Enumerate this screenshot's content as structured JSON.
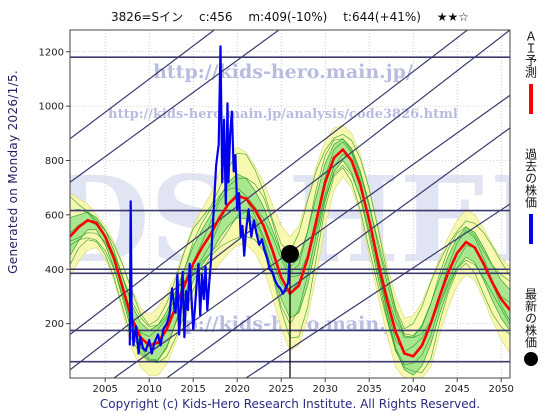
{
  "header": {
    "code_name": "3826=Sイン",
    "current": "c:456",
    "min": "m:409(-10%)",
    "target": "t:644(+41%)",
    "rating": "★★☆"
  },
  "generated": "Generated on Monday 2026/1/5.",
  "footer": "Copyright (c) Kids-Hero Research Institute. All Rights Reserved.",
  "watermark": {
    "url_main": "http://kids-hero.main.jp/",
    "url_analysis": "http://kids-hero.main.jp/analysis/code3826.html",
    "url_bottom": "http://kids-hero.main.jp/",
    "big_text": "KIDS-HERO"
  },
  "legend": {
    "ai_forecast": "ＡＩ予測",
    "past_price": "過去の株価",
    "latest_price": "最新の株価"
  },
  "colors": {
    "ai_forecast": "#ff0000",
    "past_price": "#0000ee",
    "latest_price": "#000000",
    "band_outer": "#f7f7a8",
    "band_inner": "#9be38a",
    "band_line": "#1e9a1e",
    "trend_line": "#3a3a6e",
    "grid": "#aaaaaa"
  },
  "chart_data": {
    "type": "line",
    "xlabel": "",
    "ylabel": "",
    "xlim": [
      2001,
      2051
    ],
    "ylim": [
      0,
      1280
    ],
    "xticks": [
      2005,
      2010,
      2015,
      2020,
      2025,
      2030,
      2035,
      2040,
      2045,
      2050
    ],
    "yticks": [
      200,
      400,
      600,
      800,
      1000,
      1200
    ],
    "grid": true,
    "horizontal_lines": [
      60,
      175,
      385,
      400,
      616,
      1180
    ],
    "diagonal_lines": [
      [
        [
          2001,
          30
        ],
        [
          2051,
          1280
        ]
      ],
      [
        [
          2001,
          160
        ],
        [
          2051,
          1400
        ]
      ],
      [
        [
          2001,
          720
        ],
        [
          2051,
          1900
        ]
      ],
      [
        [
          2001,
          880
        ],
        [
          2051,
          2100
        ]
      ],
      [
        [
          2006,
          0
        ],
        [
          2051,
          1040
        ]
      ],
      [
        [
          2012,
          0
        ],
        [
          2051,
          920
        ]
      ],
      [
        [
          2021,
          0
        ],
        [
          2051,
          640
        ]
      ]
    ],
    "current_marker": {
      "x": 2026.0,
      "y": 456
    },
    "ai_forecast": {
      "name": "ＡＩ予測",
      "x": [
        2001,
        2002,
        2003,
        2004,
        2005,
        2006,
        2007,
        2008,
        2009,
        2010,
        2011,
        2012,
        2013,
        2014,
        2015,
        2016,
        2017,
        2018,
        2019,
        2020,
        2021,
        2022,
        2023,
        2024,
        2025,
        2026,
        2027,
        2028,
        2029,
        2030,
        2031,
        2032,
        2033,
        2034,
        2035,
        2036,
        2037,
        2038,
        2039,
        2040,
        2041,
        2042,
        2043,
        2044,
        2045,
        2046,
        2047,
        2048,
        2049,
        2050,
        2051
      ],
      "values": [
        520,
        555,
        580,
        570,
        520,
        440,
        330,
        220,
        150,
        120,
        130,
        180,
        260,
        340,
        420,
        480,
        530,
        590,
        640,
        670,
        660,
        620,
        560,
        470,
        370,
        310,
        340,
        440,
        580,
        720,
        810,
        840,
        800,
        710,
        580,
        430,
        290,
        170,
        90,
        80,
        120,
        200,
        300,
        390,
        460,
        500,
        480,
        420,
        350,
        290,
        250
      ]
    },
    "band_upper_outer": [
      680,
      660,
      640,
      600,
      560,
      500,
      420,
      330,
      260,
      230,
      260,
      310,
      380,
      470,
      560,
      620,
      680,
      760,
      820,
      850,
      830,
      780,
      720,
      640,
      560,
      520,
      560,
      660,
      780,
      870,
      920,
      930,
      900,
      820,
      700,
      560,
      420,
      300,
      220,
      230,
      280,
      360,
      440,
      520,
      580,
      620,
      600,
      550,
      490,
      440,
      410
    ],
    "band_upper_inner": [
      590,
      600,
      610,
      590,
      545,
      470,
      370,
      270,
      205,
      175,
      195,
      245,
      320,
      400,
      485,
      545,
      600,
      665,
      720,
      750,
      735,
      690,
      630,
      545,
      460,
      410,
      440,
      540,
      670,
      790,
      860,
      880,
      845,
      760,
      640,
      490,
      355,
      235,
      155,
      150,
      195,
      275,
      365,
      450,
      515,
      555,
      535,
      480,
      415,
      360,
      325
    ],
    "band_lower_inner": [
      450,
      505,
      545,
      545,
      490,
      405,
      290,
      170,
      95,
      65,
      65,
      115,
      200,
      280,
      355,
      415,
      460,
      515,
      560,
      590,
      585,
      550,
      490,
      400,
      290,
      220,
      240,
      340,
      490,
      650,
      760,
      800,
      755,
      660,
      520,
      370,
      225,
      105,
      30,
      10,
      45,
      125,
      235,
      330,
      405,
      445,
      425,
      360,
      285,
      220,
      175
    ],
    "band_lower_outer": [
      370,
      430,
      470,
      480,
      440,
      360,
      240,
      110,
      40,
      10,
      10,
      50,
      130,
      210,
      280,
      330,
      380,
      420,
      460,
      490,
      490,
      460,
      400,
      300,
      180,
      100,
      120,
      220,
      380,
      560,
      690,
      740,
      700,
      600,
      450,
      300,
      160,
      40,
      0,
      0,
      0,
      40,
      160,
      260,
      340,
      380,
      360,
      290,
      210,
      140,
      90
    ],
    "past_price": {
      "name": "過去の株価",
      "x": [
        2007.8,
        2007.9,
        2008.0,
        2008.2,
        2008.5,
        2008.8,
        2009.0,
        2009.3,
        2009.6,
        2010.0,
        2010.3,
        2010.6,
        2011.0,
        2011.3,
        2011.6,
        2012.0,
        2012.3,
        2012.6,
        2012.9,
        2013.0,
        2013.2,
        2013.4,
        2013.6,
        2013.8,
        2014.0,
        2014.2,
        2014.4,
        2014.6,
        2014.8,
        2015.0,
        2015.2,
        2015.4,
        2015.6,
        2015.8,
        2016.0,
        2016.2,
        2016.4,
        2016.6,
        2016.8,
        2017.0,
        2017.3,
        2017.6,
        2017.9,
        2018.1,
        2018.3,
        2018.5,
        2018.7,
        2018.9,
        2019.0,
        2019.2,
        2019.4,
        2019.6,
        2019.8,
        2020.0,
        2020.2,
        2020.4,
        2020.6,
        2020.8,
        2021.0,
        2021.3,
        2021.6,
        2021.9,
        2022.2,
        2022.5,
        2022.8,
        2023.1,
        2023.4,
        2023.7,
        2024.0,
        2024.3,
        2024.6,
        2024.9,
        2025.2,
        2025.5,
        2025.8,
        2026.0
      ],
      "values": [
        120,
        650,
        260,
        120,
        190,
        90,
        150,
        110,
        100,
        140,
        90,
        130,
        160,
        120,
        180,
        200,
        230,
        330,
        250,
        240,
        380,
        160,
        260,
        390,
        150,
        320,
        250,
        420,
        300,
        180,
        260,
        350,
        420,
        230,
        380,
        290,
        410,
        250,
        340,
        420,
        600,
        780,
        860,
        1220,
        720,
        950,
        640,
        1010,
        720,
        900,
        980,
        760,
        820,
        620,
        680,
        520,
        560,
        450,
        540,
        620,
        520,
        580,
        530,
        490,
        510,
        470,
        440,
        400,
        390,
        360,
        340,
        330,
        310,
        330,
        350,
        456
      ]
    }
  }
}
